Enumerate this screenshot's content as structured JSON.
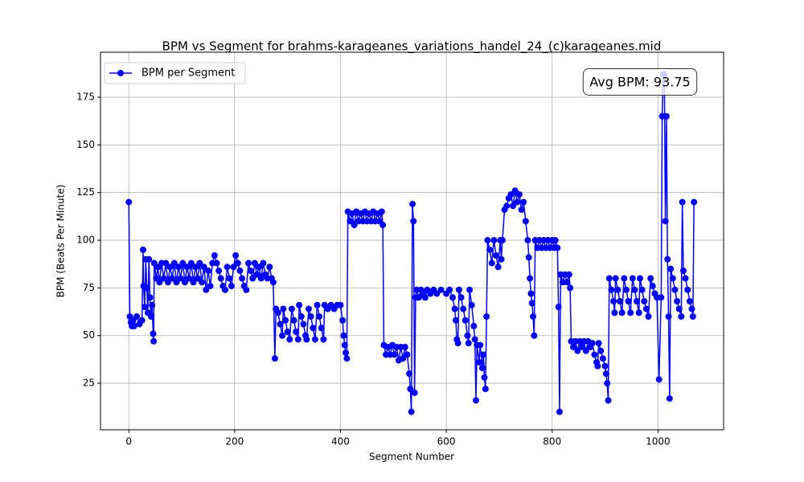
{
  "chart_data": {
    "type": "line",
    "title": "BPM vs Segment for brahms-karageanes_variations_handel_24_(c)karageanes.mid",
    "x_label": "Segment Number",
    "y_label": "BPM (Beats Per Minute)",
    "annotation": "Avg BPM: 93.75",
    "legend": "upper left",
    "grid": true,
    "xlim": [
      -53.5,
      1124
    ],
    "ylim": [
      0.6,
      198.6
    ],
    "xticks": [
      0,
      200,
      400,
      600,
      800,
      1000
    ],
    "yticks": [
      25,
      50,
      75,
      100,
      125,
      150,
      175
    ],
    "x": [
      0,
      2,
      4,
      6,
      8,
      10,
      15,
      20,
      25,
      27,
      28,
      30,
      32,
      34,
      36,
      38,
      40,
      42,
      44,
      46,
      47,
      48,
      52,
      55,
      58,
      62,
      66,
      70,
      74,
      78,
      82,
      86,
      90,
      94,
      98,
      102,
      106,
      110,
      114,
      118,
      122,
      126,
      130,
      134,
      138,
      142,
      146,
      150,
      154,
      158,
      162,
      166,
      170,
      174,
      178,
      182,
      186,
      190,
      194,
      198,
      202,
      206,
      210,
      214,
      218,
      222,
      226,
      230,
      234,
      238,
      242,
      246,
      250,
      254,
      258,
      262,
      266,
      270,
      273,
      276,
      278,
      282,
      286,
      290,
      292,
      296,
      300,
      304,
      308,
      312,
      316,
      320,
      322,
      326,
      330,
      334,
      336,
      340,
      344,
      348,
      352,
      356,
      360,
      364,
      368,
      370,
      376,
      382,
      388,
      394,
      400,
      404,
      406,
      408,
      410,
      412,
      414,
      418,
      422,
      426,
      430,
      434,
      438,
      442,
      446,
      450,
      454,
      458,
      462,
      466,
      470,
      474,
      478,
      480,
      482,
      486,
      490,
      494,
      498,
      502,
      506,
      510,
      514,
      518,
      522,
      526,
      530,
      532,
      534,
      536,
      538,
      540,
      542,
      544,
      548,
      552,
      556,
      560,
      564,
      570,
      576,
      582,
      590,
      600,
      606,
      612,
      616,
      618,
      620,
      622,
      624,
      628,
      632,
      636,
      640,
      642,
      644,
      648,
      652,
      654,
      656,
      658,
      662,
      664,
      668,
      670,
      672,
      674,
      676,
      678,
      682,
      686,
      690,
      694,
      698,
      702,
      704,
      706,
      710,
      714,
      718,
      722,
      726,
      730,
      734,
      738,
      742,
      746,
      750,
      754,
      756,
      758,
      760,
      762,
      764,
      766,
      768,
      772,
      776,
      780,
      784,
      788,
      792,
      796,
      800,
      804,
      806,
      810,
      812,
      814,
      816,
      820,
      824,
      828,
      832,
      834,
      836,
      840,
      844,
      848,
      852,
      856,
      860,
      864,
      868,
      872,
      876,
      880,
      884,
      886,
      888,
      892,
      896,
      900,
      902,
      904,
      906,
      908,
      912,
      916,
      918,
      920,
      924,
      928,
      932,
      936,
      940,
      944,
      948,
      952,
      956,
      960,
      964,
      966,
      970,
      974,
      978,
      982,
      986,
      990,
      994,
      998,
      1002,
      1006,
      1008,
      1010,
      1012,
      1014,
      1016,
      1018,
      1020,
      1022,
      1024,
      1028,
      1032,
      1036,
      1040,
      1044,
      1046,
      1048,
      1052,
      1056,
      1060,
      1064,
      1066,
      1068
    ],
    "series": [
      {
        "name": "BPM per Segment",
        "color": "#0000ff",
        "values": [
          120,
          60,
          57,
          55,
          58,
          55,
          60,
          56,
          58,
          95,
          76,
          65,
          90,
          75,
          62,
          90,
          70,
          60,
          66,
          51,
          47,
          88,
          80,
          86,
          78,
          88,
          80,
          88,
          78,
          86,
          80,
          88,
          78,
          86,
          80,
          88,
          78,
          86,
          80,
          88,
          78,
          86,
          80,
          88,
          78,
          86,
          74,
          84,
          76,
          88,
          92,
          88,
          84,
          80,
          76,
          74,
          86,
          80,
          76,
          86,
          92,
          88,
          84,
          80,
          76,
          74,
          88,
          84,
          80,
          88,
          82,
          86,
          80,
          88,
          82,
          80,
          86,
          80,
          78,
          38,
          64,
          62,
          56,
          50,
          64,
          58,
          52,
          48,
          64,
          58,
          52,
          48,
          66,
          60,
          56,
          50,
          48,
          64,
          60,
          54,
          48,
          66,
          60,
          54,
          48,
          66,
          64,
          66,
          64,
          66,
          66,
          58,
          50,
          45,
          41,
          38,
          115,
          110,
          114,
          108,
          115,
          110,
          114,
          110,
          115,
          110,
          114,
          110,
          115,
          110,
          114,
          110,
          115,
          108,
          45,
          40,
          44,
          40,
          45,
          40,
          44,
          37,
          44,
          38,
          44,
          40,
          30,
          22,
          10,
          119,
          110,
          20,
          70,
          74,
          70,
          74,
          72,
          70,
          74,
          72,
          74,
          72,
          74,
          72,
          74,
          70,
          64,
          58,
          48,
          46,
          74,
          70,
          64,
          58,
          50,
          46,
          74,
          66,
          55,
          48,
          16,
          45,
          36,
          45,
          33,
          40,
          28,
          22,
          60,
          100,
          95,
          88,
          100,
          92,
          86,
          100,
          90,
          100,
          116,
          118,
          122,
          124,
          118,
          126,
          120,
          124,
          116,
          120,
          110,
          100,
          91,
          80,
          72,
          67,
          60,
          50,
          100,
          96,
          100,
          96,
          100,
          96,
          100,
          96,
          100,
          96,
          100,
          96,
          65,
          10,
          82,
          78,
          82,
          78,
          82,
          75,
          47,
          44,
          47,
          42,
          47,
          44,
          47,
          42,
          47,
          44,
          46,
          40,
          36,
          34,
          46,
          42,
          38,
          34,
          30,
          25,
          16,
          80,
          74,
          68,
          62,
          80,
          74,
          68,
          62,
          80,
          74,
          68,
          62,
          80,
          74,
          68,
          62,
          80,
          74,
          68,
          64,
          60,
          80,
          76,
          72,
          70,
          27,
          70,
          165,
          187,
          187,
          110,
          165,
          90,
          60,
          17,
          85,
          80,
          74,
          68,
          64,
          60,
          120,
          84,
          80,
          74,
          68,
          64,
          60,
          120
        ]
      }
    ]
  }
}
